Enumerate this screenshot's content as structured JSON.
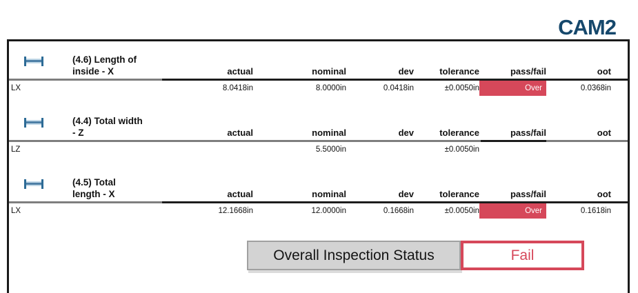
{
  "logo": "CAM2",
  "columns": [
    "actual",
    "nominal",
    "dev",
    "tolerance",
    "pass/fail",
    "oot"
  ],
  "sections": [
    {
      "icon": "length-dimension-icon",
      "title_line1": "(4.6) Length of",
      "title_line2": "inside - X",
      "row": {
        "label": "LX",
        "actual": "8.0418in",
        "nominal": "8.0000in",
        "dev": "0.0418in",
        "tolerance": "±0.0050in",
        "passfail": "Over",
        "passfail_state": "over",
        "oot": "0.0368in"
      }
    },
    {
      "icon": "length-dimension-icon",
      "title_line1": "(4.4) Total width",
      "title_line2": "- Z",
      "row": {
        "label": "LZ",
        "actual": "",
        "nominal": "5.5000in",
        "dev": "",
        "tolerance": "±0.0050in",
        "passfail": "",
        "passfail_state": "none",
        "oot": ""
      }
    },
    {
      "icon": "length-dimension-icon",
      "title_line1": "(4.5) Total",
      "title_line2": "length - X",
      "row": {
        "label": "LX",
        "actual": "12.1668in",
        "nominal": "12.0000in",
        "dev": "0.1668in",
        "tolerance": "±0.0050in",
        "passfail": "Over",
        "passfail_state": "over",
        "oot": "0.1618in"
      }
    }
  ],
  "status": {
    "label": "Overall Inspection Status",
    "value": "Fail"
  },
  "colors": {
    "fail_red": "#d6485a",
    "brand_navy": "#16486c",
    "icon_blue": "#2d6b96",
    "rule_gray": "#7e7e7e",
    "rule_black": "#1c1c1c",
    "status_gray_fill": "#d3d3d3"
  }
}
